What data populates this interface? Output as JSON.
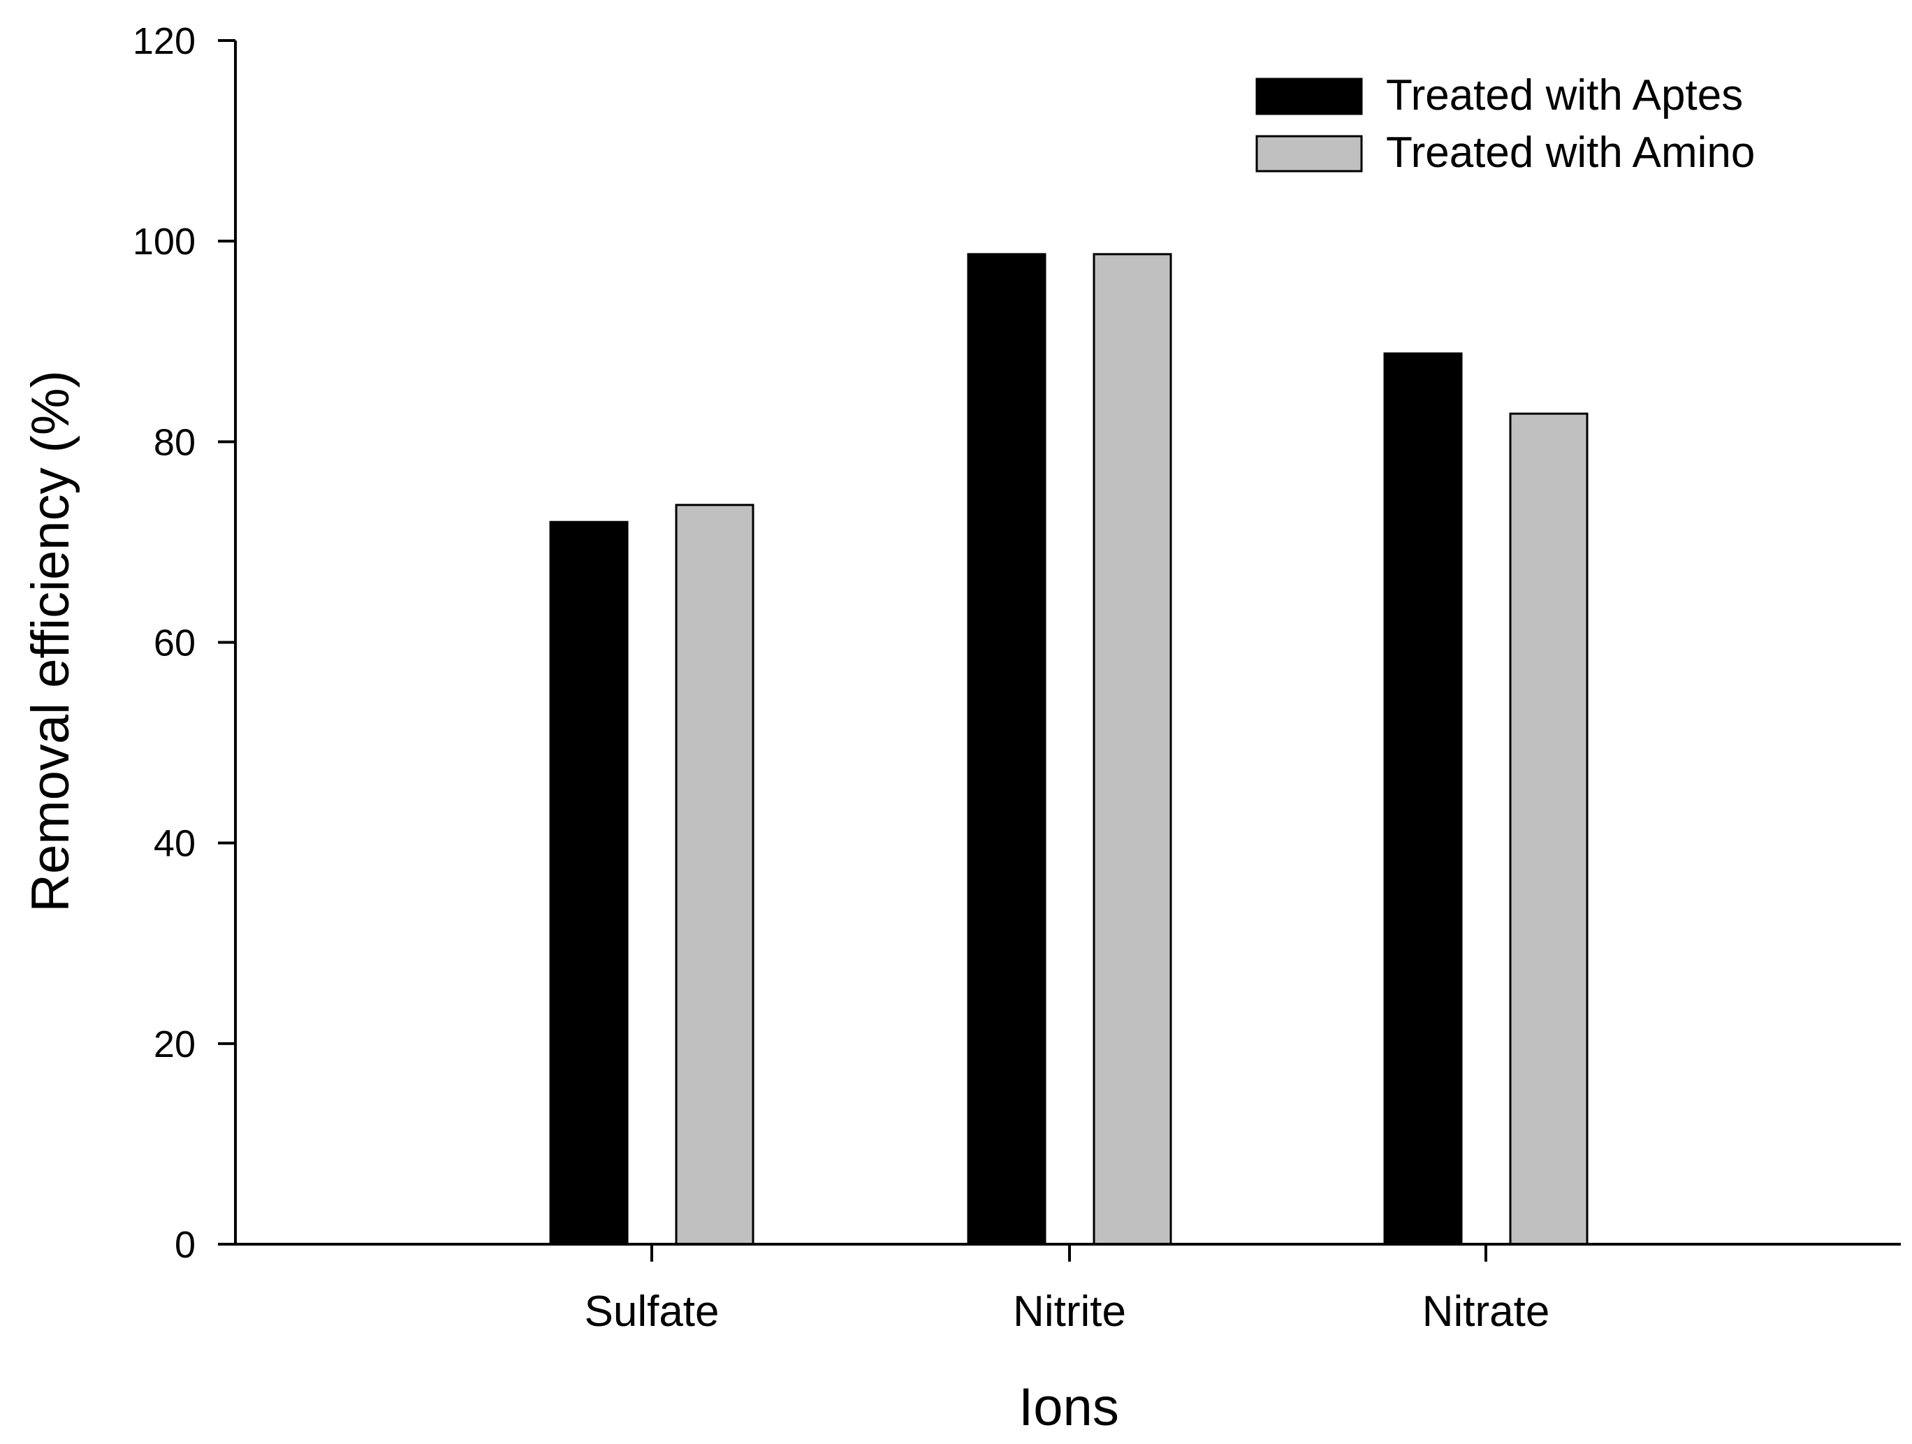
{
  "chart_data": {
    "type": "bar",
    "title": "",
    "xlabel": "Ions",
    "ylabel": "Removal efficiency (%)",
    "categories": [
      "Sulfate",
      "Nitrite",
      "Nitrate"
    ],
    "series": [
      {
        "name": "Treated with Aptes",
        "color": "#000000",
        "values": [
          72,
          98.7,
          88.8
        ]
      },
      {
        "name": "Treated with Amino",
        "color": "#c0c0c0",
        "values": [
          73.7,
          98.7,
          82.8
        ]
      }
    ],
    "ylim": [
      0,
      120
    ],
    "yticks": [
      "0",
      "20",
      "40",
      "60",
      "80",
      "100",
      "120"
    ],
    "grid": false,
    "legend_position": "top-right"
  }
}
